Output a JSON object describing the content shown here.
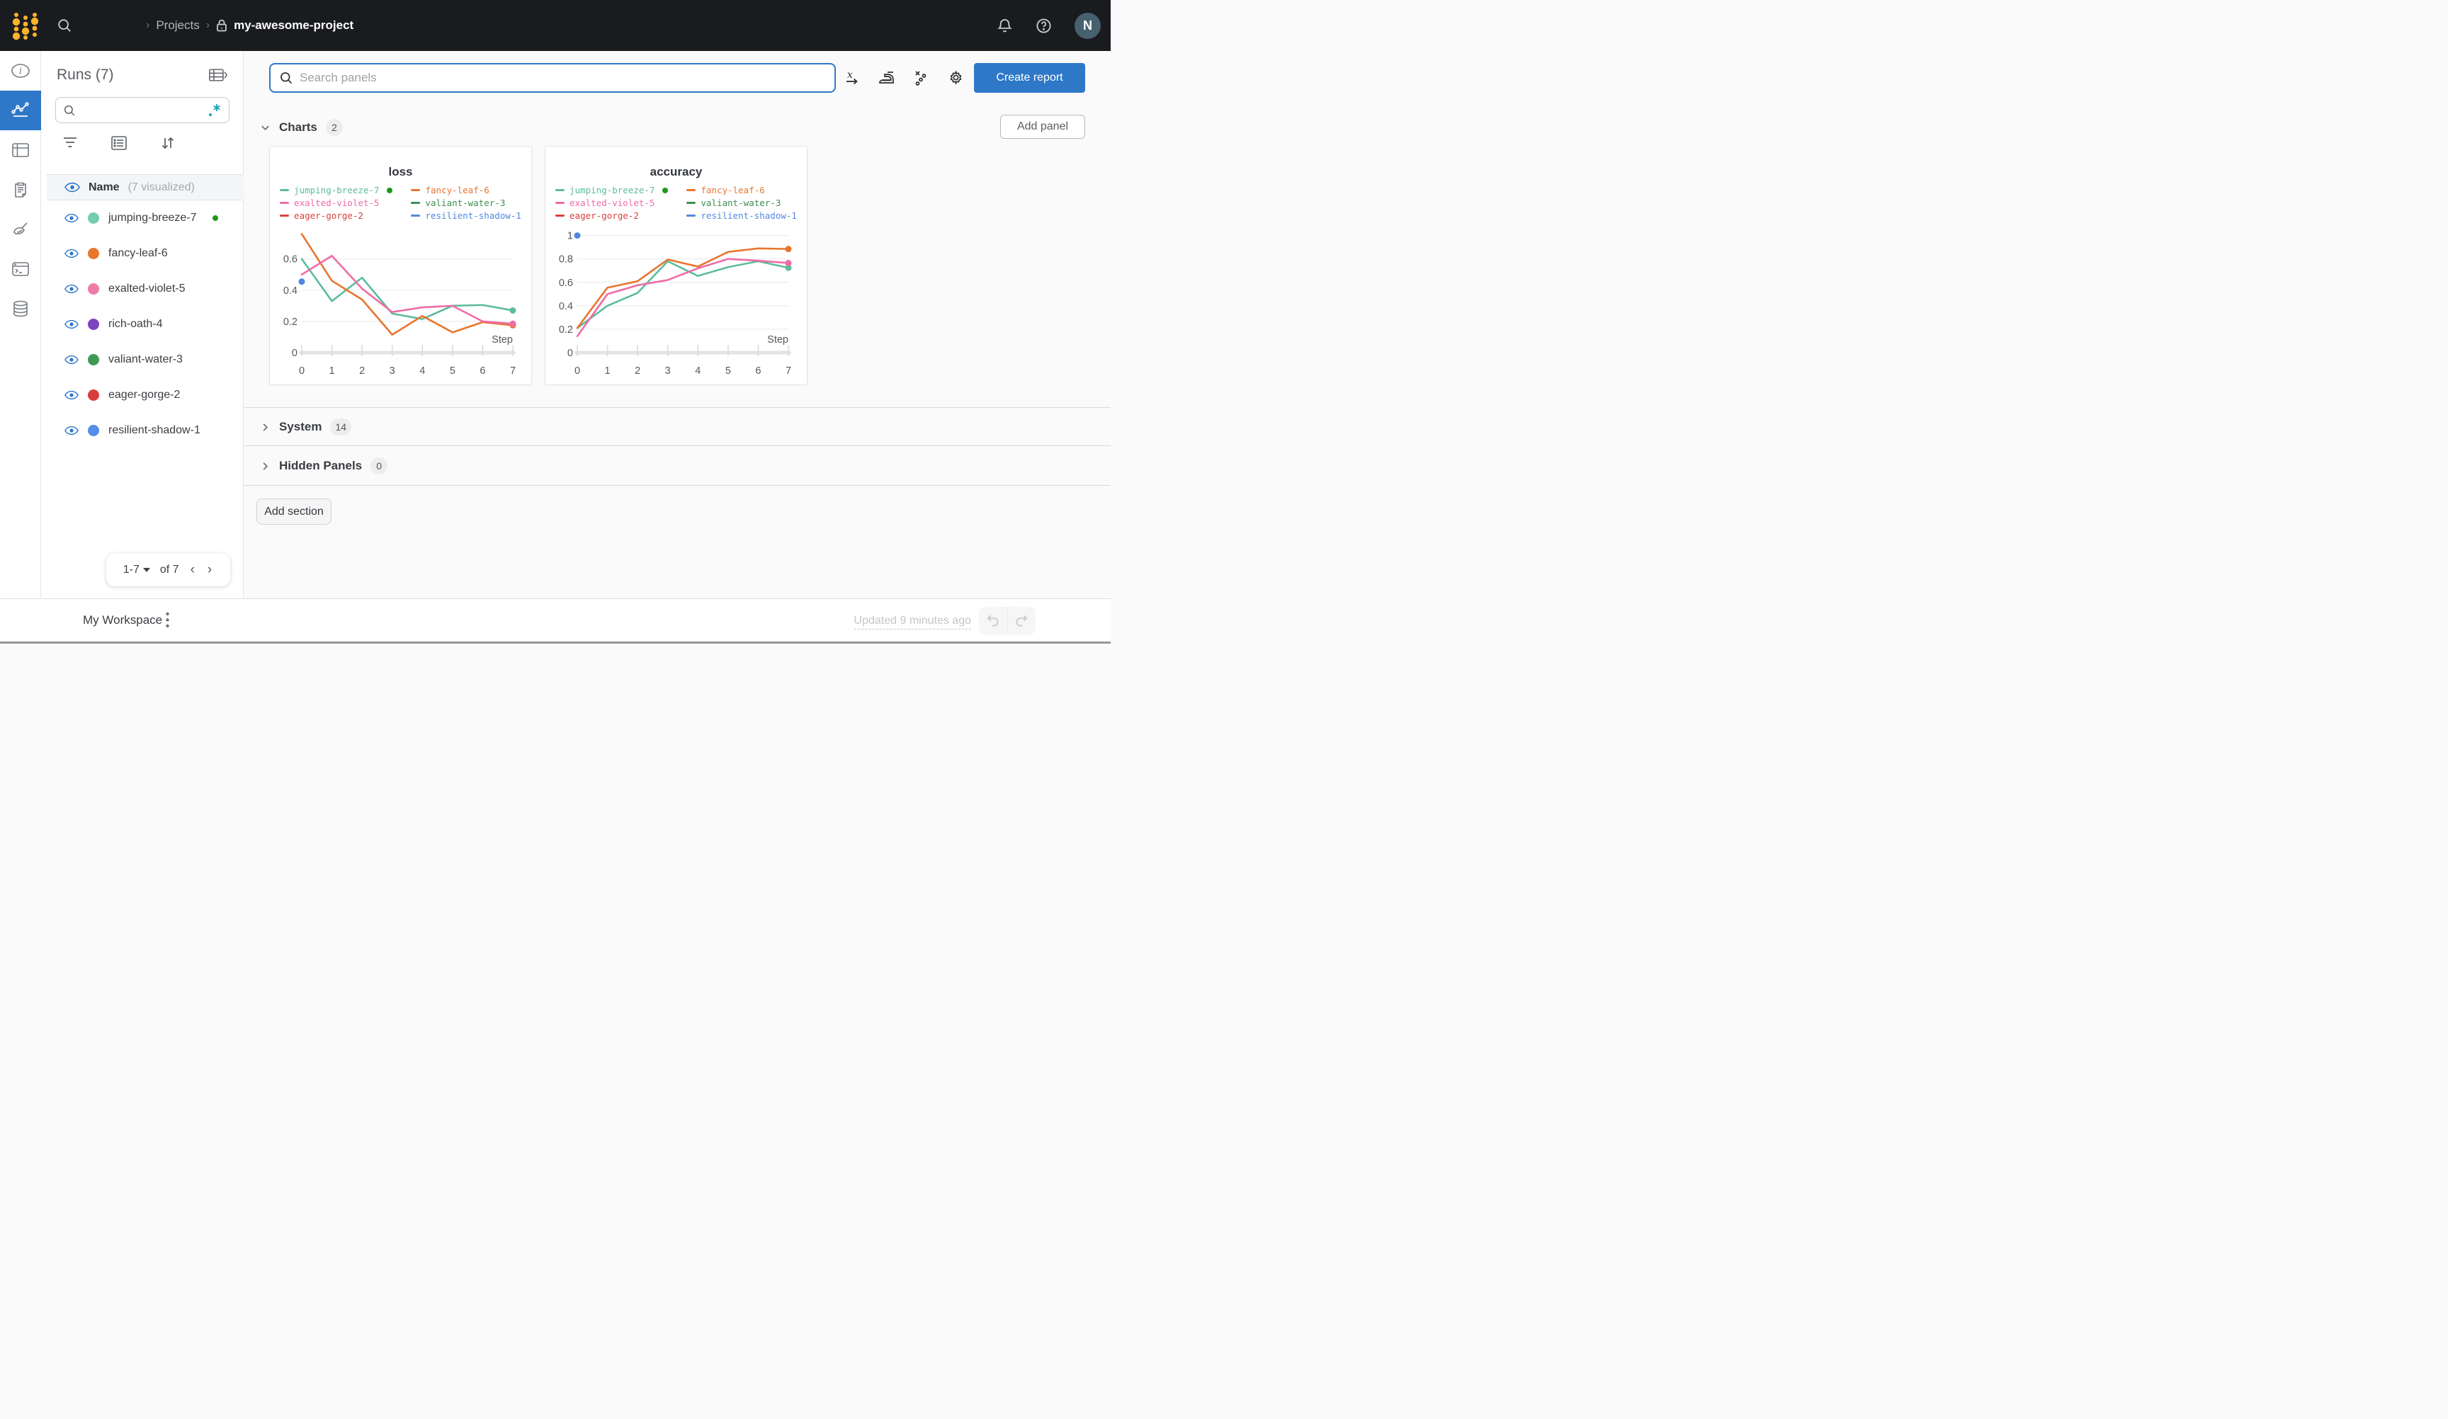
{
  "topbar": {
    "breadcrumb": {
      "projects": "Projects",
      "project": "my-awesome-project"
    },
    "avatar_initial": "N"
  },
  "sidebar": {
    "title": "Runs (7)",
    "search_placeholder": "",
    "regex_toggle": ".*",
    "header": {
      "name": "Name",
      "visualized": "(7 visualized)"
    },
    "runs": [
      {
        "name": "jumping-breeze-7",
        "color": "#76ccb0",
        "running": true
      },
      {
        "name": "fancy-leaf-6",
        "color": "#e8772e",
        "running": false
      },
      {
        "name": "exalted-violet-5",
        "color": "#ee7ca8",
        "running": false
      },
      {
        "name": "rich-oath-4",
        "color": "#7d44c1",
        "running": false
      },
      {
        "name": "valiant-water-3",
        "color": "#3f9a55",
        "running": false
      },
      {
        "name": "eager-gorge-2",
        "color": "#d83f3c",
        "running": false
      },
      {
        "name": "resilient-shadow-1",
        "color": "#548ee8",
        "running": false
      }
    ],
    "pagination": {
      "range": "1-7",
      "of": "of 7"
    }
  },
  "main": {
    "search_placeholder": "Search panels",
    "create_report": "Create report",
    "add_panel": "Add panel",
    "add_section": "Add section",
    "sections": [
      {
        "label": "Charts",
        "count": "2"
      },
      {
        "label": "System",
        "count": "14"
      },
      {
        "label": "Hidden Panels",
        "count": "0"
      }
    ]
  },
  "footer": {
    "workspace": "My Workspace",
    "updated": "Updated 9 minutes ago"
  },
  "colors": {
    "accent": "#2e78c7",
    "topbar_bg": "#191b1f",
    "logo_yellow": "#fcb32b",
    "running_green": "#1a9a1a"
  },
  "chart_data": [
    {
      "type": "line",
      "title": "loss",
      "xlabel": "Step",
      "x": [
        0,
        1,
        2,
        3,
        4,
        5,
        6,
        7
      ],
      "xticks": [
        0,
        1,
        2,
        3,
        4,
        5,
        6,
        7
      ],
      "ylim": [
        0,
        0.78
      ],
      "yticks": [
        0,
        0.2,
        0.4,
        0.6
      ],
      "grid": "horizontal",
      "legend_position": "top",
      "series": [
        {
          "name": "jumping-breeze-7",
          "color": "#5cbc9d",
          "values": [
            0.6,
            0.33,
            0.48,
            0.25,
            0.215,
            0.3,
            0.305,
            0.27
          ],
          "end_dot": true,
          "running": true
        },
        {
          "name": "fancy-leaf-6",
          "color": "#e8762e",
          "values": [
            0.76,
            0.46,
            0.34,
            0.115,
            0.235,
            0.13,
            0.195,
            0.175
          ],
          "end_dot": true,
          "running": false
        },
        {
          "name": "exalted-violet-5",
          "color": "#ee6ca5",
          "values": [
            0.5,
            0.62,
            0.41,
            0.26,
            0.29,
            0.3,
            0.2,
            0.185
          ],
          "end_dot": true,
          "running": false
        },
        {
          "name": "valiant-water-3",
          "color": "#3d8e52",
          "values": [],
          "end_dot": false,
          "running": false
        },
        {
          "name": "eager-gorge-2",
          "color": "#d9403d",
          "values": [],
          "end_dot": false,
          "running": false
        },
        {
          "name": "resilient-shadow-1",
          "color": "#5287e0",
          "values": [
            0.455
          ],
          "end_dot": true,
          "running": false
        }
      ]
    },
    {
      "type": "line",
      "title": "accuracy",
      "xlabel": "Step",
      "x": [
        0,
        1,
        2,
        3,
        4,
        5,
        6,
        7
      ],
      "xticks": [
        0,
        1,
        2,
        3,
        4,
        5,
        6,
        7
      ],
      "ylim": [
        0,
        1.04
      ],
      "yticks": [
        0,
        0.2,
        0.4,
        0.6,
        0.8,
        1
      ],
      "grid": "horizontal",
      "legend_position": "top",
      "series": [
        {
          "name": "jumping-breeze-7",
          "color": "#5cbc9d",
          "values": [
            0.21,
            0.4,
            0.51,
            0.78,
            0.655,
            0.73,
            0.78,
            0.725
          ],
          "end_dot": true,
          "running": true
        },
        {
          "name": "fancy-leaf-6",
          "color": "#e8762e",
          "values": [
            0.21,
            0.555,
            0.61,
            0.795,
            0.735,
            0.86,
            0.89,
            0.885
          ],
          "end_dot": true,
          "running": false
        },
        {
          "name": "exalted-violet-5",
          "color": "#ee6ca5",
          "values": [
            0.14,
            0.5,
            0.575,
            0.62,
            0.72,
            0.8,
            0.785,
            0.765
          ],
          "end_dot": true,
          "running": false
        },
        {
          "name": "valiant-water-3",
          "color": "#3d8e52",
          "values": [],
          "end_dot": false,
          "running": false
        },
        {
          "name": "eager-gorge-2",
          "color": "#d9403d",
          "values": [],
          "end_dot": false,
          "running": false
        },
        {
          "name": "resilient-shadow-1",
          "color": "#5287e0",
          "values": [
            1.0
          ],
          "end_dot": true,
          "running": false
        }
      ]
    }
  ]
}
